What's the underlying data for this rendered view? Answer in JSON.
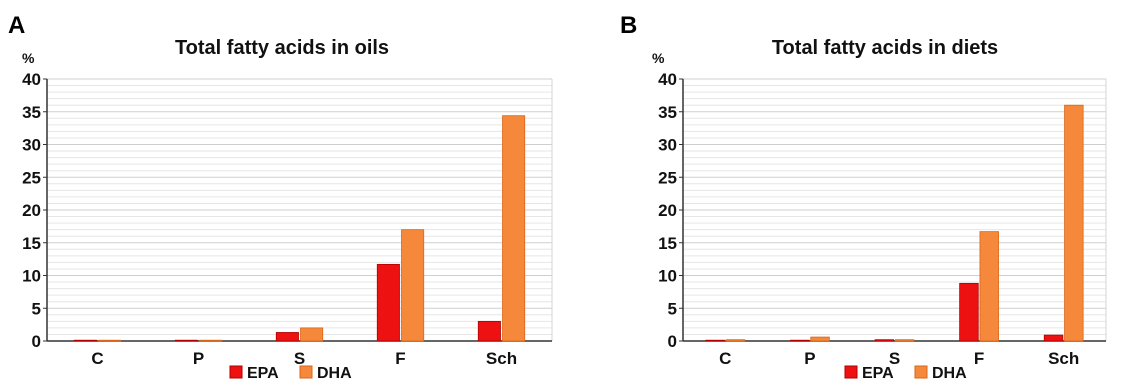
{
  "panels": [
    {
      "label": "A"
    },
    {
      "label": "B"
    }
  ],
  "chart_data": [
    {
      "type": "bar",
      "title": "Total fatty acids in oils",
      "ylabel": "%",
      "xlabel": "",
      "categories": [
        "C",
        "P",
        "S",
        "F",
        "Sch"
      ],
      "series": [
        {
          "name": "EPA",
          "color": "#ee1111",
          "values": [
            0,
            0.1,
            1.3,
            11.7,
            3.0
          ]
        },
        {
          "name": "DHA",
          "color": "#f5883a",
          "values": [
            0,
            0.1,
            2.0,
            17.0,
            34.4
          ]
        }
      ],
      "ylim": [
        0,
        40
      ],
      "yticks": [
        0,
        5,
        10,
        15,
        20,
        25,
        30,
        35,
        40
      ],
      "grid": true,
      "legend": "bottom-center"
    },
    {
      "type": "bar",
      "title": "Total fatty acids in diets",
      "ylabel": "%",
      "xlabel": "",
      "categories": [
        "C",
        "P",
        "S",
        "F",
        "Sch"
      ],
      "series": [
        {
          "name": "EPA",
          "color": "#ee1111",
          "values": [
            0.1,
            0.1,
            0.2,
            8.8,
            0.9
          ]
        },
        {
          "name": "DHA",
          "color": "#f5883a",
          "values": [
            0.2,
            0.6,
            0.2,
            16.7,
            36.0
          ]
        }
      ],
      "ylim": [
        0,
        40
      ],
      "yticks": [
        0,
        5,
        10,
        15,
        20,
        25,
        30,
        35,
        40
      ],
      "grid": true,
      "legend": "bottom-center"
    }
  ]
}
